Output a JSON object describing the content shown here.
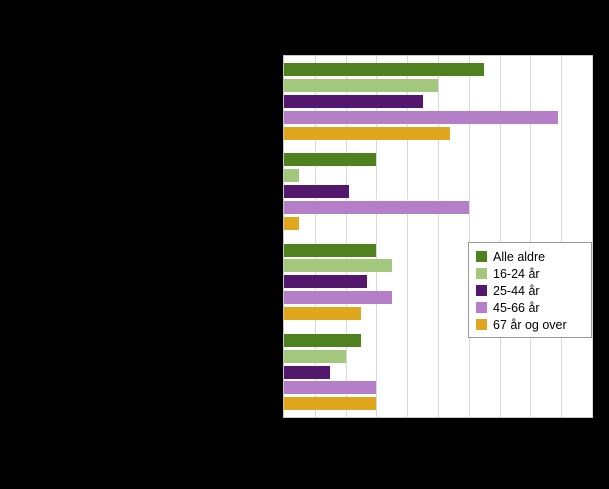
{
  "page": {
    "background_color": "#000000"
  },
  "chart_data": {
    "type": "bar",
    "orientation": "horizontal",
    "title": "",
    "xlabel": "",
    "ylabel": "",
    "categories": [
      "",
      "",
      "",
      ""
    ],
    "series": [
      {
        "name": "Alle aldre",
        "color": "#4f811f",
        "values": [
          65,
          30,
          30,
          25
        ]
      },
      {
        "name": "16-24 år",
        "color": "#a4c77e",
        "values": [
          50,
          5,
          35,
          20
        ]
      },
      {
        "name": "25-44 år",
        "color": "#53186e",
        "values": [
          45,
          21,
          27,
          15
        ]
      },
      {
        "name": "45-66 år",
        "color": "#b57ec8",
        "values": [
          89,
          60,
          35,
          30
        ]
      },
      {
        "name": "67 år og over",
        "color": "#e0a71e",
        "values": [
          54,
          5,
          25,
          30
        ]
      }
    ],
    "x_axis": {
      "min": 0,
      "max": 100,
      "gridline_step": 10
    },
    "plot_background": "#ffffff",
    "gridline_color": "#d9d9d9",
    "legend_position": "bottom-right"
  }
}
